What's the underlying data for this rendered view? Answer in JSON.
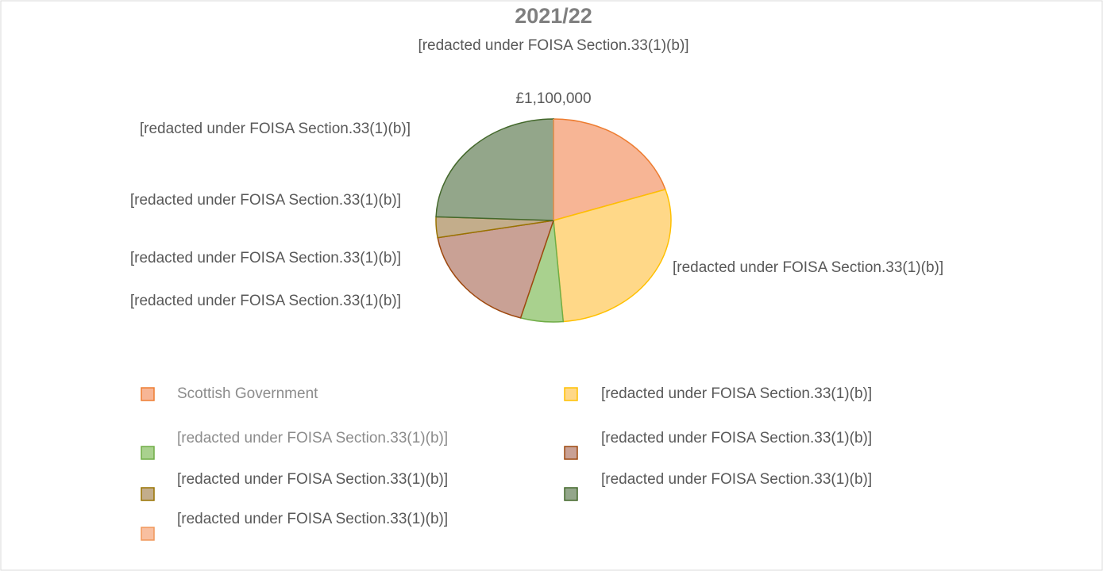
{
  "chart_data": {
    "type": "pie",
    "title": "2021/22",
    "subtitle": "[redacted under FOISA Section.33(1)(b)]",
    "categories": [
      "Scottish Government",
      "[redacted under FOISA Section.33(1)(b)]",
      "[redacted under FOISA Section.33(1)(b)]",
      "[redacted under FOISA Section.33(1)(b)]",
      "[redacted under FOISA Section.33(1)(b)]",
      "[redacted under FOISA Section.33(1)(b)]",
      "[redacted under FOISA Section.33(1)(b)]"
    ],
    "values": [
      1100000,
      1570000,
      320000,
      975000,
      180000,
      1340000,
      0
    ],
    "value_labels": [
      "£1,100,000",
      "[redacted under FOISA Section.33(1)(b)]",
      "[redacted under FOISA Section.33(1)(b)]",
      "[redacted under FOISA Section.33(1)(b)]",
      "[redacted under FOISA Section.33(1)(b)]",
      "[redacted under FOISA Section.33(1)(b)]",
      null
    ],
    "colors": [
      "#f7b595",
      "#ffd888",
      "#a9d18e",
      "#c9a195",
      "#c3ad8b",
      "#93a68a",
      "#f8bfa0"
    ],
    "legend": "bottom"
  }
}
